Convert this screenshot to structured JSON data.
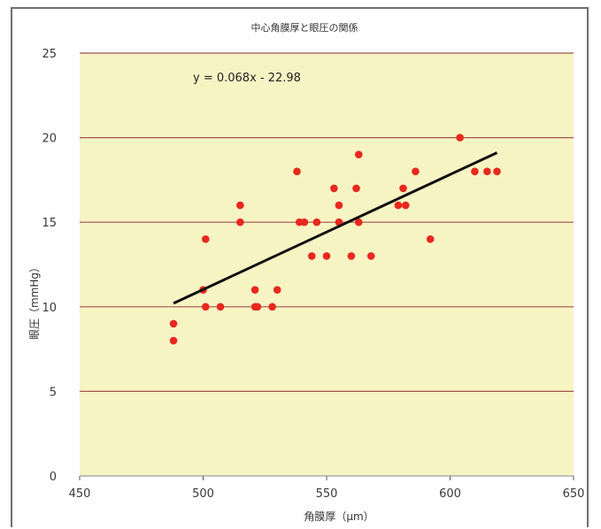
{
  "chart_data": {
    "type": "scatter",
    "title": "中心角膜厚と眼圧の関係",
    "xlabel": "角膜厚（μm）",
    "ylabel": "眼圧（mmHg）",
    "xlim": [
      450,
      650
    ],
    "ylim": [
      0,
      25
    ],
    "xticks": [
      "450",
      "500",
      "550",
      "600",
      "650"
    ],
    "yticks": [
      "0",
      "5",
      "10",
      "15",
      "20",
      "25"
    ],
    "grid": "horizontal",
    "plot_bg": "#f7f4c4",
    "grid_color": "#a0554f",
    "point_color": "#e8281e",
    "line_color": "#111111",
    "trendline": {
      "equation": "y = 0.068x - 22.98",
      "slope": 0.068,
      "intercept": -22.98,
      "x_range": [
        488,
        619
      ]
    },
    "points": [
      [
        488,
        9
      ],
      [
        488,
        8
      ],
      [
        500,
        11
      ],
      [
        501,
        14
      ],
      [
        501,
        10
      ],
      [
        507,
        10
      ],
      [
        515,
        16
      ],
      [
        515,
        15
      ],
      [
        521,
        11
      ],
      [
        521,
        10
      ],
      [
        522,
        10
      ],
      [
        528,
        10
      ],
      [
        530,
        11
      ],
      [
        538,
        18
      ],
      [
        539,
        15
      ],
      [
        541,
        15
      ],
      [
        544,
        13
      ],
      [
        546,
        15
      ],
      [
        550,
        13
      ],
      [
        553,
        17
      ],
      [
        555,
        16
      ],
      [
        555,
        15
      ],
      [
        560,
        13
      ],
      [
        562,
        17
      ],
      [
        563,
        15
      ],
      [
        563,
        19
      ],
      [
        568,
        13
      ],
      [
        579,
        16
      ],
      [
        581,
        17
      ],
      [
        582,
        16
      ],
      [
        586,
        18
      ],
      [
        592,
        14
      ],
      [
        604,
        20
      ],
      [
        610,
        18
      ],
      [
        615,
        18
      ],
      [
        619,
        18
      ]
    ]
  }
}
